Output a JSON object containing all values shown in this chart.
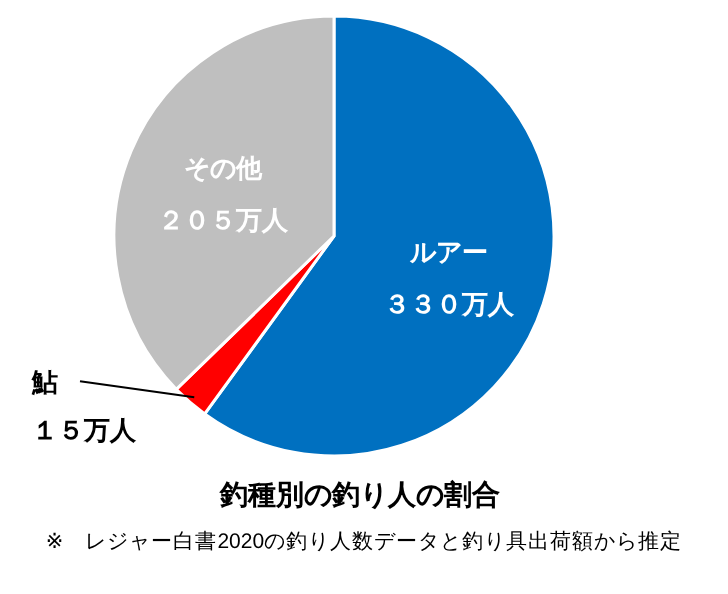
{
  "chart_data": {
    "type": "pie",
    "title": "釣種別の釣り人の割合",
    "categories": [
      "ルアー",
      "鮎",
      "その他"
    ],
    "values": [
      330,
      15,
      205
    ],
    "colors": [
      "#0070c0",
      "#ff0000",
      "#bfbfbf"
    ],
    "value_labels": [
      "３３０万人",
      "１５万人",
      "２０５万人"
    ],
    "annotations": [
      "※　レジャー白書2020の釣り人数データと釣り具出荷額から推定"
    ]
  }
}
